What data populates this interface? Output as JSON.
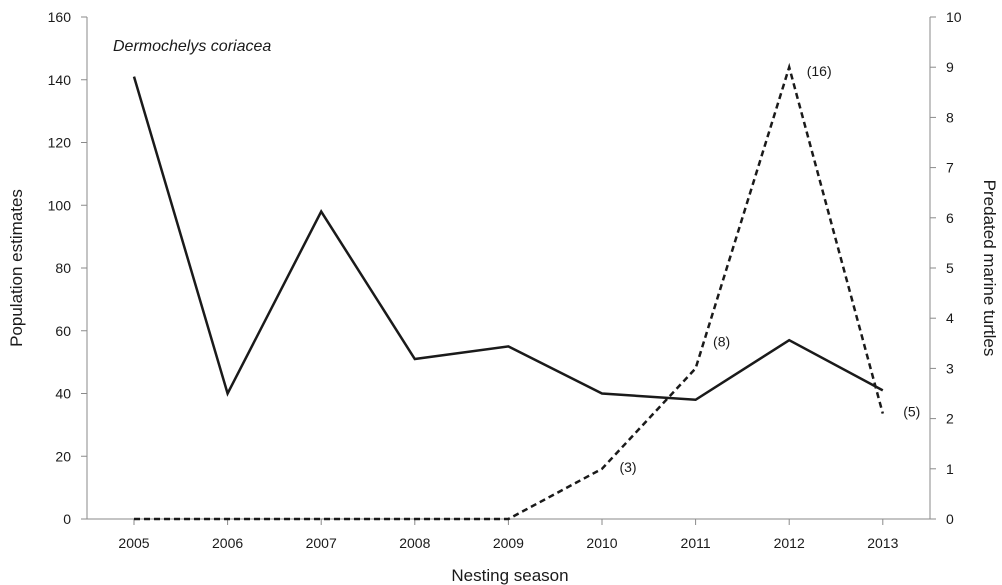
{
  "chart_data": {
    "type": "line",
    "annotation": "Dermochelys coriacea",
    "xlabel": "Nesting season",
    "ylabel_left": "Population estimates",
    "ylabel_right": "Predated marine turtles",
    "categories": [
      "2005",
      "2006",
      "2007",
      "2008",
      "2009",
      "2010",
      "2011",
      "2012",
      "2013"
    ],
    "ylim_left": [
      0,
      160
    ],
    "yticks_left": [
      "0",
      "20",
      "40",
      "60",
      "80",
      "100",
      "120",
      "140",
      "160"
    ],
    "ylim_right": [
      0,
      10
    ],
    "yticks_right": [
      "0",
      "1",
      "2",
      "3",
      "4",
      "5",
      "6",
      "7",
      "8",
      "9",
      "10"
    ],
    "grid": false,
    "series": [
      {
        "style": "solid",
        "axis": "left",
        "values": [
          141,
          40,
          98,
          51,
          55,
          40,
          38,
          57,
          41
        ]
      },
      {
        "style": "dashed",
        "axis": "right",
        "values": [
          0,
          0,
          0,
          0,
          0,
          1,
          3,
          9,
          2.1
        ],
        "point_labels": [
          "",
          "",
          "",
          "",
          "",
          "(3)",
          "(8)",
          "(16)",
          "(5)"
        ]
      }
    ]
  }
}
